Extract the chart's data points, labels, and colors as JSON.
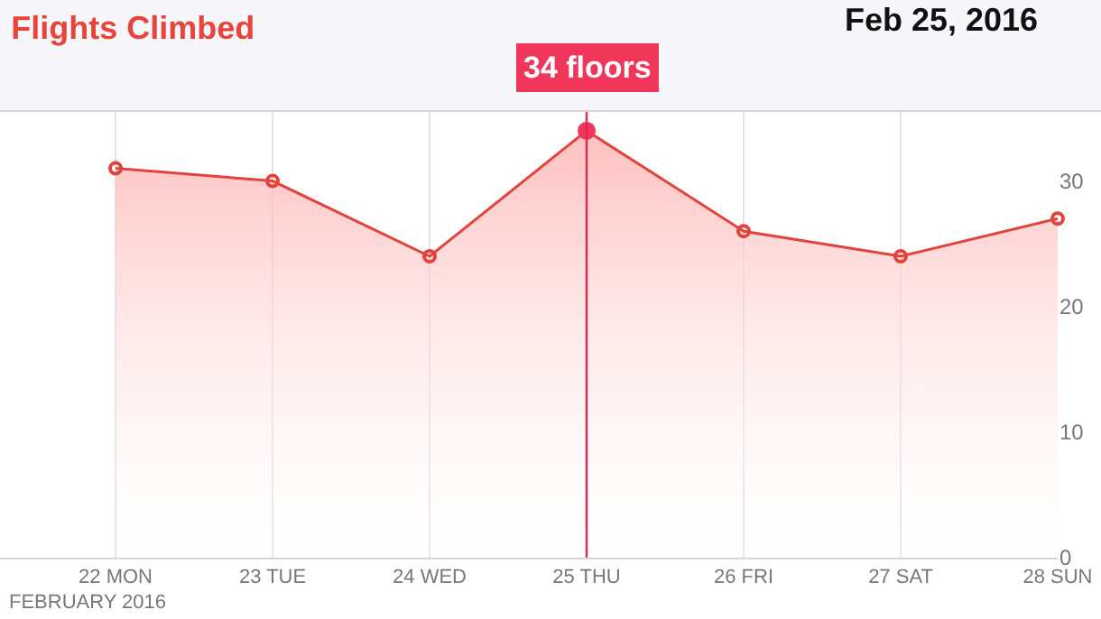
{
  "chart_data": {
    "type": "area",
    "title": "Flights Climbed",
    "subtitle": "Feb 25, 2016",
    "xlabel": "FEBRUARY 2016",
    "categories": [
      "22 MON",
      "23 TUE",
      "24 WED",
      "25 THU",
      "26 FRI",
      "27 SAT",
      "28 SUN"
    ],
    "series": [
      {
        "color": "#e0443c",
        "values": [
          31,
          30,
          24,
          34,
          26,
          24,
          27
        ]
      }
    ],
    "ylim": [
      0,
      35.5
    ],
    "yticks": [
      0,
      10,
      20,
      30
    ],
    "grid": "x",
    "marker": "circle",
    "ref_lines": [
      {
        "axis": "x",
        "value": "25 THU",
        "color": "#e0294f"
      }
    ],
    "annotations": [
      {
        "text": "34 floors",
        "x": "25 THU",
        "y": 34
      }
    ]
  }
}
